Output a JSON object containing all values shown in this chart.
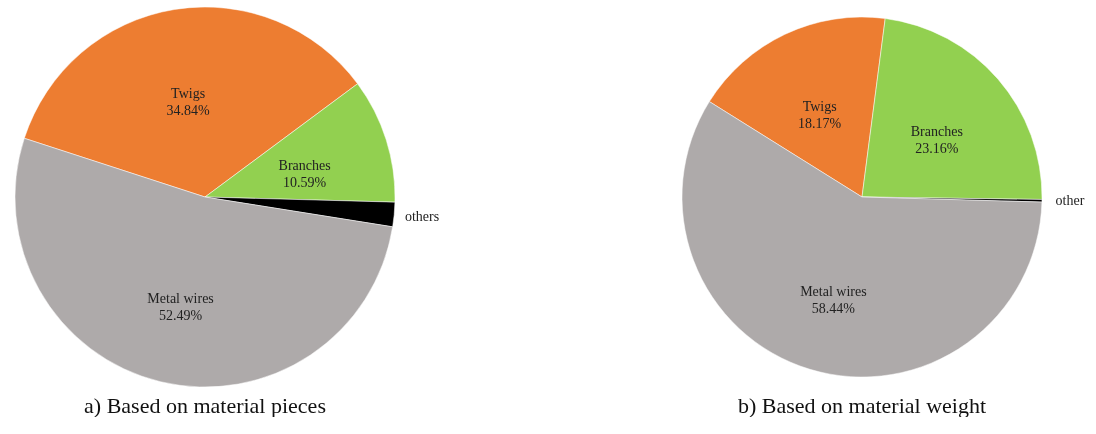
{
  "chart_data": [
    {
      "type": "pie",
      "title": "a) Based on material pieces",
      "categories": [
        "Twigs",
        "Branches",
        "others",
        "Metal wires"
      ],
      "values": [
        34.84,
        10.59,
        2.08,
        52.49
      ],
      "colors": [
        "#ed7d31",
        "#92d050",
        "#000000",
        "#aeaaaa"
      ],
      "value_labels": [
        "34.84%",
        "10.59%",
        null,
        "52.49%"
      ],
      "legend": false
    },
    {
      "type": "pie",
      "title": "b) Based on material weight",
      "categories": [
        "Twigs",
        "Branches",
        "other",
        "Metal wires"
      ],
      "values": [
        18.17,
        23.16,
        0.23,
        58.44
      ],
      "colors": [
        "#ed7d31",
        "#92d050",
        "#000000",
        "#aeaaaa"
      ],
      "value_labels": [
        "18.17%",
        "23.16%",
        null,
        "58.44%"
      ],
      "legend": false
    }
  ]
}
